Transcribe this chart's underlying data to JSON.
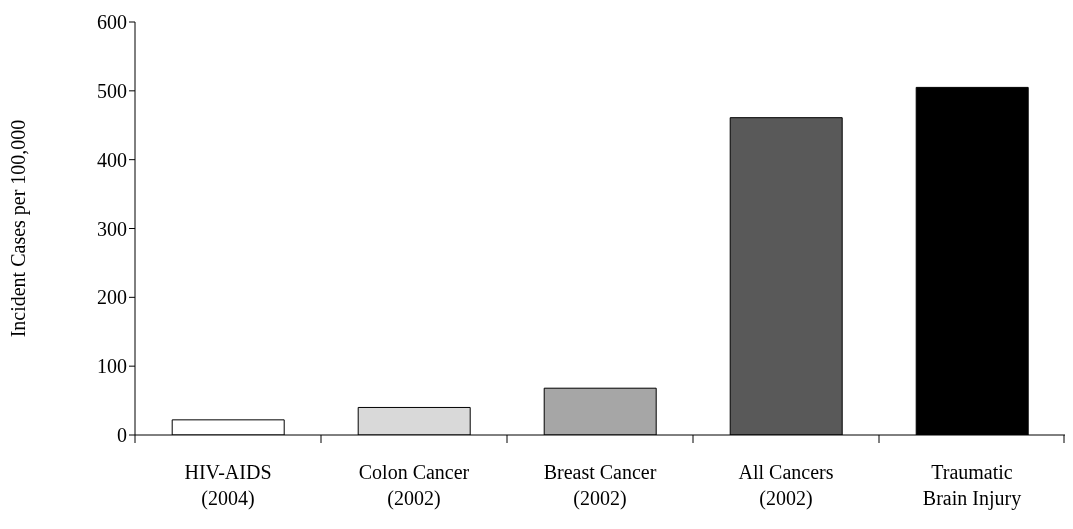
{
  "chart_data": {
    "type": "bar",
    "ylabel": "Incident Cases per 100,000",
    "categories": [
      "HIV-AIDS\n(2004)",
      "Colon Cancer\n(2002)",
      "Breast Cancer\n(2002)",
      "All Cancers\n(2002)",
      "Traumatic\nBrain Injury"
    ],
    "values": [
      22,
      40,
      68,
      461,
      505
    ],
    "colors": [
      "#ffffff",
      "#d9d9d9",
      "#a6a6a6",
      "#595959",
      "#000000"
    ],
    "ylim": [
      0,
      600
    ],
    "yticks": [
      0,
      100,
      200,
      300,
      400,
      500,
      600
    ],
    "grid": false,
    "legend": false
  }
}
